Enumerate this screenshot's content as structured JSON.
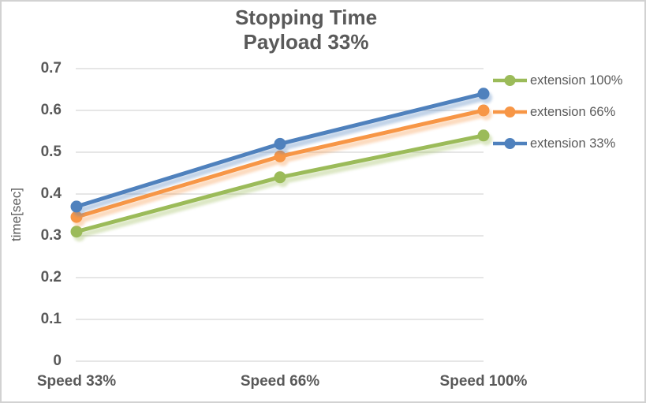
{
  "frame": {
    "background": "#ffffff",
    "border_color": "#d2d2d2"
  },
  "chart_data": {
    "type": "line",
    "title": "Stopping Time",
    "subtitle": "Payload 33%",
    "ylabel": "time[sec]",
    "xlabel": "",
    "categories": [
      "Speed 33%",
      "Speed 66%",
      "Speed 100%"
    ],
    "series": [
      {
        "name": "extension 100%",
        "color": "#9bbb59",
        "values": [
          0.31,
          0.44,
          0.54
        ]
      },
      {
        "name": "extension 66%",
        "color": "#f79646",
        "values": [
          0.345,
          0.49,
          0.6
        ]
      },
      {
        "name": "extension 33%",
        "color": "#4f81bd",
        "values": [
          0.37,
          0.52,
          0.64
        ]
      }
    ],
    "ylim": [
      0,
      0.7
    ],
    "ytick_step": 0.1,
    "ytick_labels": [
      "0",
      "0.1",
      "0.2",
      "0.3",
      "0.4",
      "0.5",
      "0.6",
      "0.7"
    ],
    "yticks": [
      0,
      0.1,
      0.2,
      0.3,
      0.4,
      0.5,
      0.6,
      0.7
    ],
    "grid": true,
    "legend_position": "right",
    "marker": "circle",
    "text_color": "#595959",
    "gridline_color": "#d6d6d6"
  }
}
